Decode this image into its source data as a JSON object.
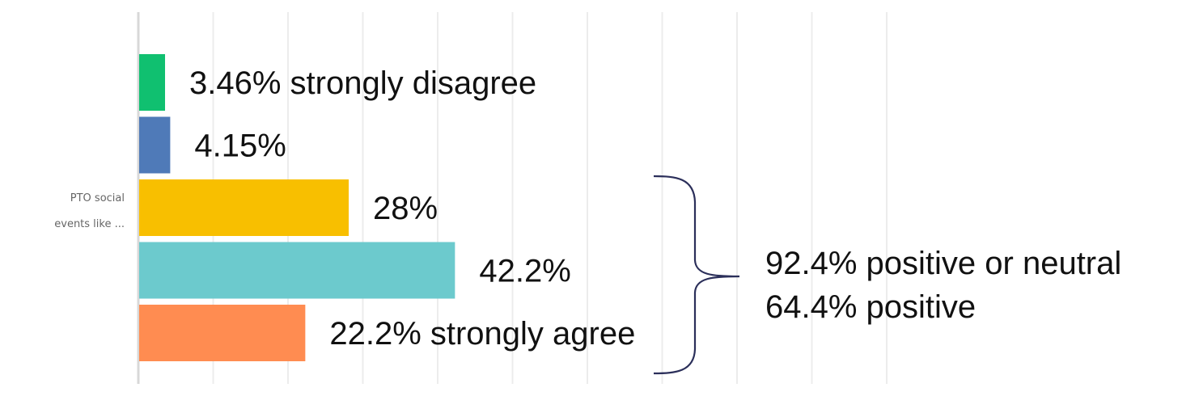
{
  "chart_data": {
    "type": "bar",
    "orientation": "horizontal",
    "title": "",
    "xlabel": "",
    "ylabel": "",
    "category_label": [
      "PTO social",
      "events like ..."
    ],
    "xlim": [
      0,
      100
    ],
    "grid": true,
    "legend": "none",
    "series": [
      {
        "value": 3.46,
        "label": "3.46% strongly disagree",
        "color": "#10c070"
      },
      {
        "value": 4.15,
        "label": "4.15%",
        "color": "#4f7ab8"
      },
      {
        "value": 28,
        "label": "28%",
        "color": "#f8bf00"
      },
      {
        "value": 42.2,
        "label": "42.2%",
        "color": "#6ccacd"
      },
      {
        "value": 22.2,
        "label": "22.2% strongly agree",
        "color": "#ff8c51"
      }
    ],
    "annotation": {
      "lines": [
        "92.4% positive or neutral",
        "64.4% positive"
      ]
    }
  }
}
